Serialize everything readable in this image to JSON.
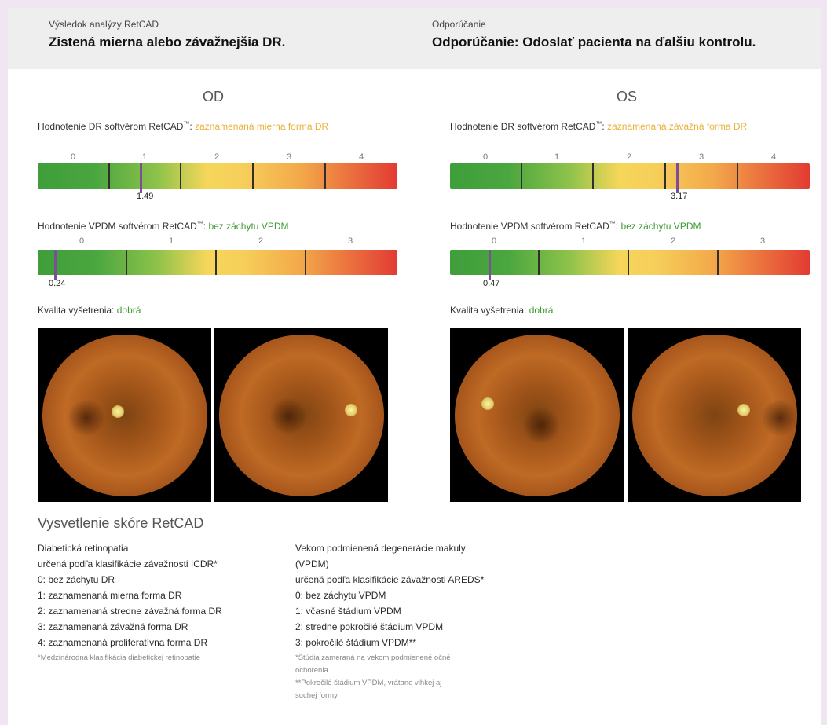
{
  "header": {
    "result_label": "Výsledok analýzy RetCAD",
    "result_text": "Zistená mierna alebo závažnejšia DR.",
    "recommendation_label": "Odporúčanie",
    "recommendation_text": "Odporúčanie: Odoslať pacienta na ďalšiu kontrolu."
  },
  "colors": {
    "dr_finding": "#e9b13a",
    "ok_finding": "#3e9a33",
    "marker": "#7a4f97"
  },
  "eyes": [
    {
      "name": "OD",
      "dr_label": "Hodnotenie DR softvérom RetCAD",
      "tm": "™",
      "dr_sep": ":",
      "dr_finding": "zaznamenaná mierna forma DR",
      "dr_scale": [
        "0",
        "1",
        "2",
        "3",
        "4"
      ],
      "dr_score": "1.49",
      "dr_value": 1.49,
      "vpdm_label": "Hodnotenie VPDM softvérom RetCAD",
      "vpdm_sep": ":",
      "vpdm_finding": "bez záchytu VPDM",
      "vpdm_scale": [
        "0",
        "1",
        "2",
        "3"
      ],
      "vpdm_score": "0.24",
      "vpdm_value": 0.24,
      "quality_label": "Kvalita vyšetrenia:",
      "quality_value": "dobrá",
      "images": [
        "fundus-left-eye",
        "fundus-left-eye"
      ]
    },
    {
      "name": "OS",
      "dr_label": "Hodnotenie DR softvérom RetCAD",
      "tm": "™",
      "dr_sep": ":",
      "dr_finding": "zaznamenaná závažná forma DR",
      "dr_scale": [
        "0",
        "1",
        "2",
        "3",
        "4"
      ],
      "dr_score": "3.17",
      "dr_value": 3.17,
      "vpdm_label": "Hodnotenie VPDM softvérom RetCAD",
      "vpdm_sep": ":",
      "vpdm_finding": "bez záchytu VPDM",
      "vpdm_scale": [
        "0",
        "1",
        "2",
        "3"
      ],
      "vpdm_score": "0.47",
      "vpdm_value": 0.47,
      "quality_label": "Kvalita vyšetrenia:",
      "quality_value": "dobrá",
      "images": [
        "fundus-right-eye",
        "fundus-right-eye"
      ]
    }
  ],
  "explanation": {
    "title": "Vysvetlenie skóre RetCAD",
    "dr": {
      "heading1": "Diabetická retinopatia",
      "heading2": "určená podľa klasifikácie závažnosti ICDR*",
      "items": [
        "0: bez záchytu DR",
        "1: zaznamenaná mierna forma DR",
        "2: zaznamenaná stredne závažná forma DR",
        "3: zaznamenaná závažná forma DR",
        "4: zaznamenaná proliferatívna forma DR"
      ],
      "note": "*Medzinárodná klasifikácia diabetickej retinopatie"
    },
    "vpdm": {
      "heading1": "Vekom podmienená degenerácie makuly",
      "heading1b": "(VPDM)",
      "heading2": "určená podľa klasifikácie závažnosti AREDS*",
      "items": [
        "0: bez záchytu VPDM",
        "1: včasné štádium VPDM",
        "2: stredne pokročilé štádium VPDM",
        "3: pokročilé štádium VPDM**"
      ],
      "note1": "*Štúdia zameraná na vekom podmienené očné",
      "note1b": "ochorenia",
      "note2": "**Pokročilé štádium VPDM, vrátane vlhkej aj",
      "note2b": "suchej formy"
    }
  }
}
